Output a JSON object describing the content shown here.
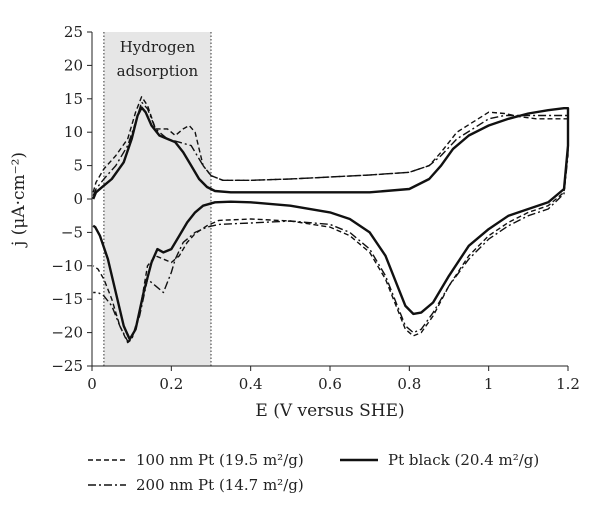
{
  "chart_data": {
    "type": "line",
    "xlabel": "E (V versus SHE)",
    "ylabel": "j (μA·cm⁻²)",
    "xlim": [
      0,
      1.2
    ],
    "ylim": [
      -25,
      25
    ],
    "x_ticks": [
      0,
      0.2,
      0.4,
      0.6,
      0.8,
      1,
      1.2
    ],
    "x_tick_labels": [
      "0",
      "0.2",
      "0.4",
      "0.6",
      "0.8",
      "1",
      "1.2"
    ],
    "y_ticks": [
      -25,
      -20,
      -15,
      -10,
      -5,
      0,
      5,
      10,
      15,
      20,
      25
    ],
    "y_tick_labels": [
      "−25",
      "−20",
      "−15",
      "−10",
      "−5",
      "0",
      "5",
      "10",
      "15",
      "20",
      "25"
    ],
    "grid": false,
    "legend_position": "bottom",
    "annotation": {
      "label_line1": "Hydrogen",
      "label_line2": "adsorption",
      "x_start": 0.03,
      "x_end": 0.3,
      "fill_color": "#e6e6e6"
    },
    "series": [
      {
        "name": "100 nm Pt (19.5 m²/g)",
        "style": "dashed",
        "color": "#111111",
        "x": [
          0.003,
          0.01,
          0.03,
          0.06,
          0.09,
          0.11,
          0.125,
          0.14,
          0.16,
          0.19,
          0.21,
          0.23,
          0.245,
          0.26,
          0.28,
          0.3,
          0.33,
          0.4,
          0.5,
          0.6,
          0.7,
          0.8,
          0.85,
          0.88,
          0.92,
          0.96,
          1.0,
          1.04,
          1.08,
          1.12,
          1.16,
          1.19,
          1.2,
          1.2,
          1.19,
          1.15,
          1.1,
          1.05,
          1.0,
          0.95,
          0.9,
          0.86,
          0.83,
          0.81,
          0.79,
          0.77,
          0.74,
          0.7,
          0.65,
          0.6,
          0.5,
          0.4,
          0.32,
          0.29,
          0.26,
          0.24,
          0.22,
          0.2,
          0.18,
          0.16,
          0.14,
          0.12,
          0.1,
          0.09,
          0.07,
          0.05,
          0.03,
          0.015,
          0.003
        ],
        "values": [
          1.0,
          2.5,
          4.5,
          6.5,
          9.0,
          13.0,
          15.3,
          14.0,
          10.5,
          10.5,
          9.5,
          10.5,
          11.0,
          10.0,
          5.0,
          3.5,
          2.8,
          2.8,
          3.0,
          3.3,
          3.6,
          4.0,
          5.0,
          7.0,
          10.0,
          11.5,
          13.0,
          12.8,
          12.3,
          12.0,
          12.0,
          12.0,
          12.0,
          7.0,
          1.0,
          -1.0,
          -2.0,
          -3.5,
          -5.5,
          -8.5,
          -13.0,
          -17.5,
          -20.0,
          -20.5,
          -19.5,
          -16.5,
          -12.0,
          -8.0,
          -5.5,
          -4.2,
          -3.3,
          -3.0,
          -3.2,
          -4.0,
          -5.2,
          -6.5,
          -8.5,
          -9.5,
          -9.0,
          -8.5,
          -10.0,
          -17.0,
          -21.0,
          -21.5,
          -19.0,
          -15.0,
          -12.0,
          -10.5,
          -10.0
        ]
      },
      {
        "name": "200 nm Pt (14.7 m²/g)",
        "style": "dash-dot",
        "color": "#111111",
        "x": [
          0.003,
          0.01,
          0.03,
          0.06,
          0.09,
          0.11,
          0.125,
          0.14,
          0.16,
          0.19,
          0.22,
          0.25,
          0.28,
          0.3,
          0.33,
          0.4,
          0.5,
          0.6,
          0.7,
          0.8,
          0.85,
          0.88,
          0.92,
          0.96,
          1.0,
          1.04,
          1.08,
          1.12,
          1.16,
          1.19,
          1.2,
          1.2,
          1.19,
          1.15,
          1.1,
          1.05,
          1.0,
          0.95,
          0.9,
          0.86,
          0.83,
          0.81,
          0.79,
          0.77,
          0.74,
          0.7,
          0.65,
          0.6,
          0.5,
          0.4,
          0.32,
          0.29,
          0.26,
          0.23,
          0.21,
          0.2,
          0.18,
          0.16,
          0.14,
          0.12,
          0.1,
          0.09,
          0.07,
          0.05,
          0.03,
          0.015,
          0.003
        ],
        "values": [
          0.5,
          1.5,
          3.0,
          5.0,
          8.0,
          11.5,
          14.5,
          13.5,
          10.5,
          9.0,
          8.5,
          8.0,
          5.0,
          3.5,
          2.8,
          2.8,
          3.0,
          3.3,
          3.6,
          4.0,
          5.0,
          6.5,
          9.0,
          10.5,
          12.0,
          12.5,
          12.5,
          12.5,
          12.5,
          12.5,
          12.5,
          6.5,
          0.8,
          -1.5,
          -2.5,
          -4.0,
          -6.0,
          -9.0,
          -13.0,
          -17.0,
          -19.5,
          -20.0,
          -19.0,
          -16.0,
          -11.5,
          -7.5,
          -5.0,
          -3.8,
          -3.3,
          -3.6,
          -3.8,
          -4.2,
          -5.0,
          -6.5,
          -9.0,
          -11.0,
          -14.0,
          -13.0,
          -12.0,
          -17.5,
          -21.0,
          -21.3,
          -19.0,
          -16.0,
          -14.5,
          -14.0,
          -14.0
        ]
      },
      {
        "name": "Pt black (20.4 m²/g)",
        "style": "solid",
        "color": "#111111",
        "x": [
          0.003,
          0.01,
          0.03,
          0.05,
          0.08,
          0.1,
          0.115,
          0.125,
          0.135,
          0.15,
          0.17,
          0.19,
          0.21,
          0.23,
          0.25,
          0.27,
          0.29,
          0.31,
          0.35,
          0.4,
          0.5,
          0.6,
          0.7,
          0.8,
          0.85,
          0.88,
          0.91,
          0.95,
          1.0,
          1.05,
          1.1,
          1.15,
          1.19,
          1.2,
          1.2,
          1.19,
          1.15,
          1.1,
          1.05,
          1.0,
          0.95,
          0.9,
          0.86,
          0.83,
          0.81,
          0.79,
          0.77,
          0.74,
          0.7,
          0.65,
          0.6,
          0.5,
          0.4,
          0.35,
          0.31,
          0.28,
          0.26,
          0.24,
          0.22,
          0.2,
          0.18,
          0.165,
          0.15,
          0.13,
          0.11,
          0.095,
          0.08,
          0.06,
          0.04,
          0.02,
          0.008,
          0.003
        ],
        "values": [
          0.0,
          1.0,
          2.0,
          3.0,
          5.5,
          9.0,
          12.5,
          13.7,
          13.0,
          11.0,
          9.5,
          9.0,
          8.5,
          7.0,
          5.0,
          3.0,
          1.8,
          1.2,
          1.0,
          1.0,
          1.0,
          1.0,
          1.0,
          1.5,
          3.0,
          5.0,
          7.5,
          9.5,
          11.0,
          12.0,
          12.8,
          13.3,
          13.6,
          13.6,
          8.0,
          1.5,
          -0.5,
          -1.5,
          -2.5,
          -4.5,
          -7.0,
          -11.5,
          -15.5,
          -17.0,
          -17.2,
          -16.0,
          -13.0,
          -8.5,
          -5.0,
          -3.0,
          -2.0,
          -1.0,
          -0.5,
          -0.4,
          -0.5,
          -1.0,
          -2.0,
          -3.5,
          -5.5,
          -7.5,
          -8.0,
          -7.5,
          -9.5,
          -14.0,
          -19.5,
          -21.0,
          -19.0,
          -14.0,
          -9.0,
          -5.5,
          -4.2,
          -4.0
        ]
      }
    ]
  }
}
